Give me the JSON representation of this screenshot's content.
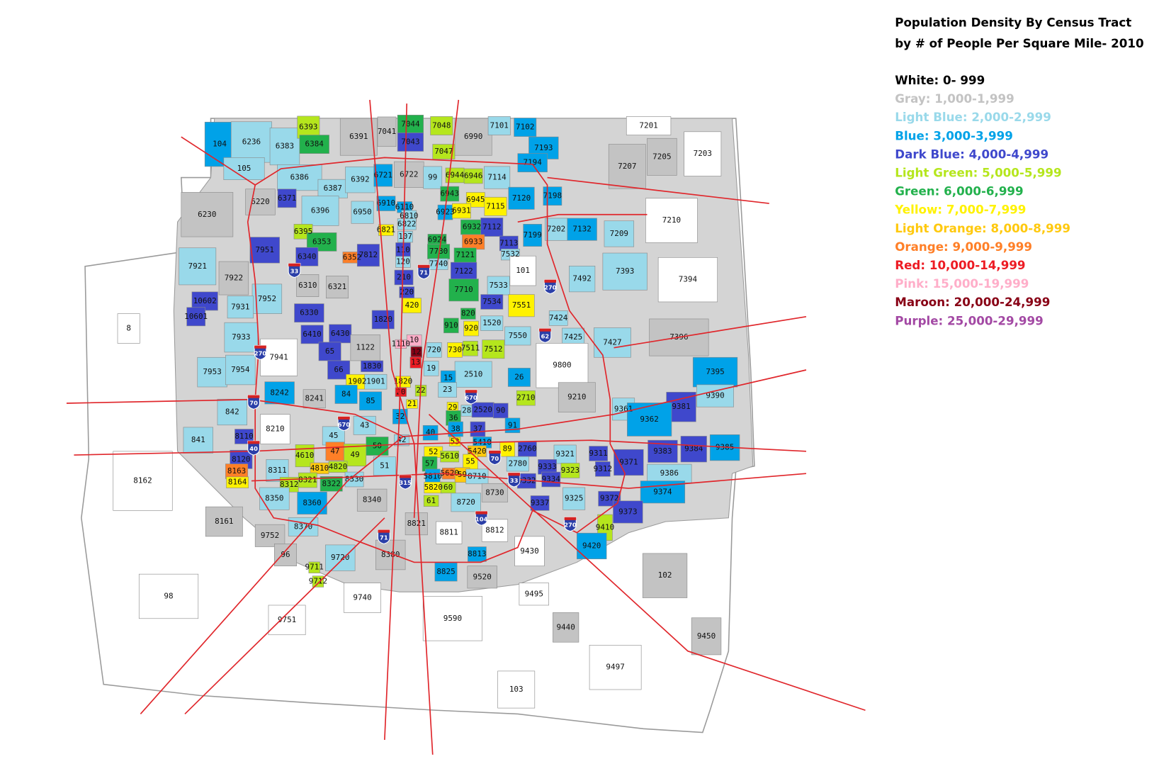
{
  "legend": {
    "title": [
      "Population Density By Census Tract",
      "by # of People Per Square Mile- 2010"
    ],
    "items": [
      {
        "label": "White: 0- 999",
        "color": "#000000"
      },
      {
        "label": "Gray: 1,000-1,999",
        "color": "#c3c3c3"
      },
      {
        "label": "Light Blue: 2,000-2,999",
        "color": "#99d9ea"
      },
      {
        "label": "Blue: 3,000-3,999",
        "color": "#00a2e8"
      },
      {
        "label": "Dark Blue: 4,000-4,999",
        "color": "#3f48cc"
      },
      {
        "label": "Light Green: 5,000-5,999",
        "color": "#b5e61d"
      },
      {
        "label": "Green: 6,000-6,999",
        "color": "#22b14c"
      },
      {
        "label": "Yellow: 7,000-7,999",
        "color": "#fff200"
      },
      {
        "label": "Light Orange: 8,000-8,999",
        "color": "#ffc90e"
      },
      {
        "label": "Orange: 9,000-9,999",
        "color": "#ff7f27"
      },
      {
        "label": "Red: 10,000-14,999",
        "color": "#ed1c24"
      },
      {
        "label": "Pink: 15,000-19,999",
        "color": "#ffaec9"
      },
      {
        "label": "Maroon: 20,000-24,999",
        "color": "#880015"
      },
      {
        "label": "Purple: 25,000-29,999",
        "color": "#a349a4"
      }
    ]
  },
  "shields": [
    "33",
    "71",
    "270",
    "62",
    "270",
    "70",
    "670",
    "670",
    "40",
    "70",
    "315",
    "33",
    "104",
    "270",
    "71"
  ],
  "tracts": [
    {
      "label": "104",
      "color": "#00a2e8"
    },
    {
      "label": "6236",
      "color": "#99d9ea"
    },
    {
      "label": "6383",
      "color": "#99d9ea"
    },
    {
      "label": "6393",
      "color": "#b5e61d"
    },
    {
      "label": "6384",
      "color": "#22b14c"
    },
    {
      "label": "6391",
      "color": "#c3c3c3"
    },
    {
      "label": "7041",
      "color": "#c3c3c3"
    },
    {
      "label": "7044",
      "color": "#22b14c"
    },
    {
      "label": "7048",
      "color": "#b5e61d"
    },
    {
      "label": "7043",
      "color": "#3f48cc"
    },
    {
      "label": "7047",
      "color": "#b5e61d"
    },
    {
      "label": "6990",
      "color": "#c3c3c3"
    },
    {
      "label": "7101",
      "color": "#99d9ea"
    },
    {
      "label": "7102",
      "color": "#00a2e8"
    },
    {
      "label": "7193",
      "color": "#00a2e8"
    },
    {
      "label": "7194",
      "color": "#00a2e8"
    },
    {
      "label": "7201",
      "color": "#ffffff"
    },
    {
      "label": "7205",
      "color": "#c3c3c3"
    },
    {
      "label": "7203",
      "color": "#ffffff"
    },
    {
      "label": "7207",
      "color": "#c3c3c3"
    },
    {
      "label": "105",
      "color": "#99d9ea"
    },
    {
      "label": "6386",
      "color": "#99d9ea"
    },
    {
      "label": "6387",
      "color": "#99d9ea"
    },
    {
      "label": "6392",
      "color": "#99d9ea"
    },
    {
      "label": "6721",
      "color": "#00a2e8"
    },
    {
      "label": "6722",
      "color": "#c3c3c3"
    },
    {
      "label": "99",
      "color": "#99d9ea"
    },
    {
      "label": "6944",
      "color": "#b5e61d"
    },
    {
      "label": "6946",
      "color": "#b5e61d"
    },
    {
      "label": "7114",
      "color": "#99d9ea"
    },
    {
      "label": "6220",
      "color": "#c3c3c3"
    },
    {
      "label": "6230",
      "color": "#c3c3c3"
    },
    {
      "label": "6371",
      "color": "#3f48cc"
    },
    {
      "label": "6396",
      "color": "#99d9ea"
    },
    {
      "label": "6950",
      "color": "#99d9ea"
    },
    {
      "label": "6910",
      "color": "#00a2e8"
    },
    {
      "label": "6110",
      "color": "#00a2e8"
    },
    {
      "label": "6943",
      "color": "#22b14c"
    },
    {
      "label": "6945",
      "color": "#fff200"
    },
    {
      "label": "7115",
      "color": "#fff200"
    },
    {
      "label": "7120",
      "color": "#00a2e8"
    },
    {
      "label": "7198",
      "color": "#00a2e8"
    },
    {
      "label": "6810",
      "color": "#99d9ea"
    },
    {
      "label": "6923",
      "color": "#00a2e8"
    },
    {
      "label": "6931",
      "color": "#fff200"
    },
    {
      "label": "6822",
      "color": "#99d9ea"
    },
    {
      "label": "7210",
      "color": "#ffffff"
    },
    {
      "label": "7132",
      "color": "#00a2e8"
    },
    {
      "label": "7209",
      "color": "#99d9ea"
    },
    {
      "label": "6395",
      "color": "#b5e61d"
    },
    {
      "label": "6821",
      "color": "#fff200"
    },
    {
      "label": "6932",
      "color": "#22b14c"
    },
    {
      "label": "7112",
      "color": "#3f48cc"
    },
    {
      "label": "7199",
      "color": "#00a2e8"
    },
    {
      "label": "7202",
      "color": "#99d9ea"
    },
    {
      "label": "6353",
      "color": "#22b14c"
    },
    {
      "label": "6352",
      "color": "#ff7f27"
    },
    {
      "label": "7812",
      "color": "#3f48cc"
    },
    {
      "label": "107",
      "color": "#99d9ea"
    },
    {
      "label": "6924",
      "color": "#22b14c"
    },
    {
      "label": "6933",
      "color": "#ff7f27"
    },
    {
      "label": "7113",
      "color": "#3f48cc"
    },
    {
      "label": "7951",
      "color": "#3f48cc"
    },
    {
      "label": "6340",
      "color": "#3f48cc"
    },
    {
      "label": "110",
      "color": "#3f48cc"
    },
    {
      "label": "7730",
      "color": "#22b14c"
    },
    {
      "label": "7121",
      "color": "#22b14c"
    },
    {
      "label": "7532",
      "color": "#99d9ea"
    },
    {
      "label": "7921",
      "color": "#99d9ea"
    },
    {
      "label": "7922",
      "color": "#c3c3c3"
    },
    {
      "label": "120",
      "color": "#99d9ea"
    },
    {
      "label": "7740",
      "color": "#99d9ea"
    },
    {
      "label": "7122",
      "color": "#3f48cc"
    },
    {
      "label": "101",
      "color": "#ffffff"
    },
    {
      "label": "7393",
      "color": "#99d9ea"
    },
    {
      "label": "7394",
      "color": "#ffffff"
    },
    {
      "label": "7492",
      "color": "#99d9ea"
    },
    {
      "label": "6310",
      "color": "#c3c3c3"
    },
    {
      "label": "6321",
      "color": "#c3c3c3"
    },
    {
      "label": "210",
      "color": "#3f48cc"
    },
    {
      "label": "7710",
      "color": "#22b14c"
    },
    {
      "label": "7533",
      "color": "#99d9ea"
    },
    {
      "label": "7952",
      "color": "#99d9ea"
    },
    {
      "label": "7931",
      "color": "#99d9ea"
    },
    {
      "label": "10602",
      "color": "#3f48cc"
    },
    {
      "label": "220",
      "color": "#3f48cc"
    },
    {
      "label": "7534",
      "color": "#3f48cc"
    },
    {
      "label": "7551",
      "color": "#fff200"
    },
    {
      "label": "6330",
      "color": "#3f48cc"
    },
    {
      "label": "420",
      "color": "#fff200"
    },
    {
      "label": "10601",
      "color": "#3f48cc"
    },
    {
      "label": "1820",
      "color": "#3f48cc"
    },
    {
      "label": "910",
      "color": "#22b14c"
    },
    {
      "label": "820",
      "color": "#22b14c"
    },
    {
      "label": "1520",
      "color": "#99d9ea"
    },
    {
      "label": "7424",
      "color": "#99d9ea"
    },
    {
      "label": "6410",
      "color": "#3f48cc"
    },
    {
      "label": "6430",
      "color": "#3f48cc"
    },
    {
      "label": "7933",
      "color": "#99d9ea"
    },
    {
      "label": "920",
      "color": "#fff200"
    },
    {
      "label": "7550",
      "color": "#99d9ea"
    },
    {
      "label": "7425",
      "color": "#99d9ea"
    },
    {
      "label": "7427",
      "color": "#99d9ea"
    },
    {
      "label": "7396",
      "color": "#c3c3c3"
    },
    {
      "label": "1122",
      "color": "#c3c3c3"
    },
    {
      "label": "1110",
      "color": "#ffaec9"
    },
    {
      "label": "10",
      "color": "#ffaec9"
    },
    {
      "label": "720",
      "color": "#99d9ea"
    },
    {
      "label": "730",
      "color": "#fff200"
    },
    {
      "label": "7511",
      "color": "#b5e61d"
    },
    {
      "label": "7512",
      "color": "#b5e61d"
    },
    {
      "label": "7941",
      "color": "#ffffff"
    },
    {
      "label": "65",
      "color": "#3f48cc"
    },
    {
      "label": "12",
      "color": "#880015"
    },
    {
      "label": "13",
      "color": "#ed1c24"
    },
    {
      "label": "9800",
      "color": "#ffffff"
    },
    {
      "label": "7953",
      "color": "#99d9ea"
    },
    {
      "label": "7954",
      "color": "#99d9ea"
    },
    {
      "label": "66",
      "color": "#3f48cc"
    },
    {
      "label": "1830",
      "color": "#3f48cc"
    },
    {
      "label": "19",
      "color": "#99d9ea"
    },
    {
      "label": "2510",
      "color": "#99d9ea"
    },
    {
      "label": "7395",
      "color": "#00a2e8"
    },
    {
      "label": "1902",
      "color": "#fff200"
    },
    {
      "label": "1901",
      "color": "#99d9ea"
    },
    {
      "label": "1820",
      "color": "#fff200"
    },
    {
      "label": "15",
      "color": "#00a2e8"
    },
    {
      "label": "26",
      "color": "#00a2e8"
    },
    {
      "label": "8242",
      "color": "#00a2e8"
    },
    {
      "label": "8241",
      "color": "#c3c3c3"
    },
    {
      "label": "84",
      "color": "#00a2e8"
    },
    {
      "label": "85",
      "color": "#00a2e8"
    },
    {
      "label": "20",
      "color": "#ed1c24"
    },
    {
      "label": "22",
      "color": "#b5e61d"
    },
    {
      "label": "23",
      "color": "#99d9ea"
    },
    {
      "label": "9210",
      "color": "#c3c3c3"
    },
    {
      "label": "9390",
      "color": "#99d9ea"
    },
    {
      "label": "9381",
      "color": "#3f48cc"
    },
    {
      "label": "842",
      "color": "#99d9ea"
    },
    {
      "label": "43",
      "color": "#99d9ea"
    },
    {
      "label": "21",
      "color": "#fff200"
    },
    {
      "label": "29",
      "color": "#fff200"
    },
    {
      "label": "28",
      "color": "#99d9ea"
    },
    {
      "label": "2520",
      "color": "#3f48cc"
    },
    {
      "label": "90",
      "color": "#3f48cc"
    },
    {
      "label": "2710",
      "color": "#b5e61d"
    },
    {
      "label": "9361",
      "color": "#99d9ea"
    },
    {
      "label": "9362",
      "color": "#00a2e8"
    },
    {
      "label": "32",
      "color": "#00a2e8"
    },
    {
      "label": "36",
      "color": "#22b14c"
    },
    {
      "label": "91",
      "color": "#00a2e8"
    },
    {
      "label": "8210",
      "color": "#ffffff"
    },
    {
      "label": "45",
      "color": "#99d9ea"
    },
    {
      "label": "40",
      "color": "#00a2e8"
    },
    {
      "label": "38",
      "color": "#00a2e8"
    },
    {
      "label": "37",
      "color": "#3f48cc"
    },
    {
      "label": "841",
      "color": "#99d9ea"
    },
    {
      "label": "8110",
      "color": "#3f48cc"
    },
    {
      "label": "42",
      "color": "#99d9ea"
    },
    {
      "label": "53",
      "color": "#fff200"
    },
    {
      "label": "5410",
      "color": "#00a2e8"
    },
    {
      "label": "8120",
      "color": "#3f48cc"
    },
    {
      "label": "47",
      "color": "#ff7f27"
    },
    {
      "label": "4610",
      "color": "#b5e61d"
    },
    {
      "label": "50",
      "color": "#22b14c"
    },
    {
      "label": "49",
      "color": "#b5e61d"
    },
    {
      "label": "52",
      "color": "#fff200"
    },
    {
      "label": "5610",
      "color": "#b5e61d"
    },
    {
      "label": "5420",
      "color": "#ffc90e"
    },
    {
      "label": "89",
      "color": "#fff200"
    },
    {
      "label": "2760",
      "color": "#3f48cc"
    },
    {
      "label": "9321",
      "color": "#99d9ea"
    },
    {
      "label": "9311",
      "color": "#3f48cc"
    },
    {
      "label": "9371",
      "color": "#3f48cc"
    },
    {
      "label": "9383",
      "color": "#3f48cc"
    },
    {
      "label": "9384",
      "color": "#3f48cc"
    },
    {
      "label": "9385",
      "color": "#00a2e8"
    },
    {
      "label": "8311",
      "color": "#99d9ea"
    },
    {
      "label": "8163",
      "color": "#ff7f27"
    },
    {
      "label": "4810",
      "color": "#ffc90e"
    },
    {
      "label": "4820",
      "color": "#b5e61d"
    },
    {
      "label": "51",
      "color": "#99d9ea"
    },
    {
      "label": "57",
      "color": "#22b14c"
    },
    {
      "label": "55",
      "color": "#fff200"
    },
    {
      "label": "2780",
      "color": "#99d9ea"
    },
    {
      "label": "9333",
      "color": "#3f48cc"
    },
    {
      "label": "9323",
      "color": "#b5e61d"
    },
    {
      "label": "9312",
      "color": "#3f48cc"
    },
    {
      "label": "9386",
      "color": "#99d9ea"
    },
    {
      "label": "8164",
      "color": "#fff200"
    },
    {
      "label": "8312",
      "color": "#b5e61d"
    },
    {
      "label": "8321",
      "color": "#b5e61d"
    },
    {
      "label": "8322",
      "color": "#22b14c"
    },
    {
      "label": "8330",
      "color": "#99d9ea"
    },
    {
      "label": "5810",
      "color": "#00a2e8"
    },
    {
      "label": "5620",
      "color": "#ff7f27"
    },
    {
      "label": "59",
      "color": "#ffc90e"
    },
    {
      "label": "8710",
      "color": "#99d9ea"
    },
    {
      "label": "9332",
      "color": "#3f48cc"
    },
    {
      "label": "9334",
      "color": "#3f48cc"
    },
    {
      "label": "5820",
      "color": "#fff200"
    },
    {
      "label": "60",
      "color": "#b5e61d"
    },
    {
      "label": "9374",
      "color": "#00a2e8"
    },
    {
      "label": "8730",
      "color": "#c3c3c3"
    },
    {
      "label": "8350",
      "color": "#99d9ea"
    },
    {
      "label": "8360",
      "color": "#00a2e8"
    },
    {
      "label": "8340",
      "color": "#c3c3c3"
    },
    {
      "label": "61",
      "color": "#b5e61d"
    },
    {
      "label": "8720",
      "color": "#99d9ea"
    },
    {
      "label": "9337",
      "color": "#3f48cc"
    },
    {
      "label": "9325",
      "color": "#99d9ea"
    },
    {
      "label": "9372",
      "color": "#3f48cc"
    },
    {
      "label": "8161",
      "color": "#c3c3c3"
    },
    {
      "label": "8162",
      "color": "#ffffff"
    },
    {
      "label": "9373",
      "color": "#3f48cc"
    },
    {
      "label": "8370",
      "color": "#99d9ea"
    },
    {
      "label": "8821",
      "color": "#c3c3c3"
    },
    {
      "label": "8812",
      "color": "#ffffff"
    },
    {
      "label": "8811",
      "color": "#ffffff"
    },
    {
      "label": "9410",
      "color": "#b5e61d"
    },
    {
      "label": "9752",
      "color": "#c3c3c3"
    },
    {
      "label": "96",
      "color": "#c3c3c3"
    },
    {
      "label": "9720",
      "color": "#99d9ea"
    },
    {
      "label": "8380",
      "color": "#c3c3c3"
    },
    {
      "label": "8813",
      "color": "#00a2e8"
    },
    {
      "label": "9430",
      "color": "#ffffff"
    },
    {
      "label": "9420",
      "color": "#00a2e8"
    },
    {
      "label": "102",
      "color": "#c3c3c3"
    },
    {
      "label": "9711",
      "color": "#b5e61d"
    },
    {
      "label": "8825",
      "color": "#00a2e8"
    },
    {
      "label": "9520",
      "color": "#c3c3c3"
    },
    {
      "label": "9712",
      "color": "#b5e61d"
    },
    {
      "label": "98",
      "color": "#ffffff"
    },
    {
      "label": "9740",
      "color": "#ffffff"
    },
    {
      "label": "9495",
      "color": "#ffffff"
    },
    {
      "label": "9590",
      "color": "#ffffff"
    },
    {
      "label": "9751",
      "color": "#ffffff"
    },
    {
      "label": "9440",
      "color": "#c3c3c3"
    },
    {
      "label": "9450",
      "color": "#c3c3c3"
    },
    {
      "label": "9497",
      "color": "#ffffff"
    },
    {
      "label": "103",
      "color": "#ffffff"
    },
    {
      "label": "8",
      "color": "#ffffff"
    }
  ]
}
